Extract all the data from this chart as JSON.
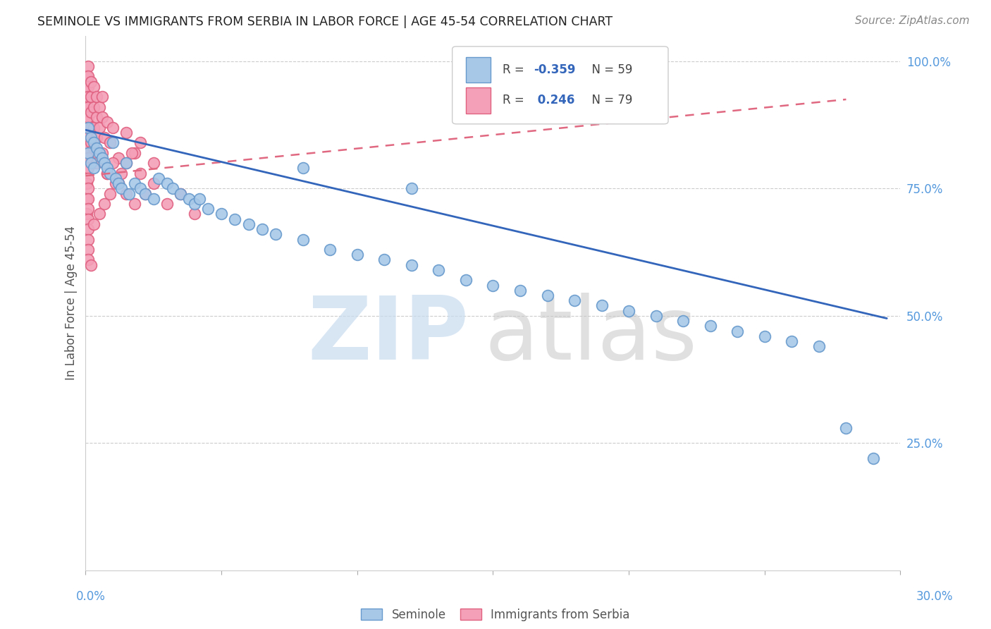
{
  "title": "SEMINOLE VS IMMIGRANTS FROM SERBIA IN LABOR FORCE | AGE 45-54 CORRELATION CHART",
  "source": "Source: ZipAtlas.com",
  "ylabel": "In Labor Force | Age 45-54",
  "legend_blue": {
    "R": -0.359,
    "N": 59,
    "label": "Seminole"
  },
  "legend_pink": {
    "R": 0.246,
    "N": 79,
    "label": "Immigrants from Serbia"
  },
  "blue_scatter_x": [
    0.001,
    0.001,
    0.002,
    0.002,
    0.003,
    0.003,
    0.004,
    0.005,
    0.006,
    0.007,
    0.008,
    0.009,
    0.01,
    0.011,
    0.012,
    0.013,
    0.015,
    0.016,
    0.018,
    0.02,
    0.022,
    0.025,
    0.027,
    0.03,
    0.032,
    0.035,
    0.038,
    0.04,
    0.042,
    0.045,
    0.05,
    0.055,
    0.06,
    0.065,
    0.07,
    0.08,
    0.09,
    0.1,
    0.11,
    0.12,
    0.13,
    0.14,
    0.15,
    0.16,
    0.17,
    0.18,
    0.19,
    0.2,
    0.21,
    0.22,
    0.23,
    0.24,
    0.25,
    0.26,
    0.27,
    0.28,
    0.29,
    0.08,
    0.12
  ],
  "blue_scatter_y": [
    0.87,
    0.82,
    0.85,
    0.8,
    0.84,
    0.79,
    0.83,
    0.82,
    0.81,
    0.8,
    0.79,
    0.78,
    0.84,
    0.77,
    0.76,
    0.75,
    0.8,
    0.74,
    0.76,
    0.75,
    0.74,
    0.73,
    0.77,
    0.76,
    0.75,
    0.74,
    0.73,
    0.72,
    0.73,
    0.71,
    0.7,
    0.69,
    0.68,
    0.67,
    0.66,
    0.65,
    0.63,
    0.62,
    0.61,
    0.6,
    0.59,
    0.57,
    0.56,
    0.55,
    0.54,
    0.53,
    0.52,
    0.51,
    0.5,
    0.49,
    0.48,
    0.47,
    0.46,
    0.45,
    0.44,
    0.28,
    0.22,
    0.79,
    0.75
  ],
  "pink_scatter_x": [
    0.0005,
    0.0005,
    0.0005,
    0.0005,
    0.0005,
    0.0005,
    0.0005,
    0.0005,
    0.0005,
    0.0005,
    0.001,
    0.001,
    0.001,
    0.001,
    0.001,
    0.001,
    0.001,
    0.001,
    0.001,
    0.001,
    0.001,
    0.001,
    0.001,
    0.001,
    0.001,
    0.001,
    0.001,
    0.001,
    0.001,
    0.001,
    0.002,
    0.002,
    0.002,
    0.002,
    0.002,
    0.003,
    0.003,
    0.003,
    0.003,
    0.004,
    0.004,
    0.004,
    0.005,
    0.005,
    0.006,
    0.006,
    0.007,
    0.008,
    0.009,
    0.01,
    0.012,
    0.015,
    0.018,
    0.02,
    0.025,
    0.008,
    0.012,
    0.015,
    0.018,
    0.02,
    0.022,
    0.025,
    0.03,
    0.035,
    0.04,
    0.004,
    0.006,
    0.008,
    0.01,
    0.012,
    0.003,
    0.005,
    0.007,
    0.009,
    0.011,
    0.013,
    0.015,
    0.017,
    0.002
  ],
  "pink_scatter_y": [
    0.97,
    0.94,
    0.91,
    0.88,
    0.85,
    0.82,
    0.79,
    0.76,
    0.73,
    0.7,
    0.99,
    0.97,
    0.95,
    0.93,
    0.91,
    0.89,
    0.87,
    0.85,
    0.83,
    0.81,
    0.79,
    0.77,
    0.75,
    0.73,
    0.71,
    0.69,
    0.67,
    0.65,
    0.63,
    0.61,
    0.96,
    0.93,
    0.9,
    0.87,
    0.84,
    0.95,
    0.91,
    0.87,
    0.83,
    0.93,
    0.89,
    0.85,
    0.91,
    0.87,
    0.93,
    0.89,
    0.85,
    0.88,
    0.84,
    0.87,
    0.81,
    0.86,
    0.82,
    0.84,
    0.8,
    0.78,
    0.76,
    0.74,
    0.72,
    0.78,
    0.74,
    0.76,
    0.72,
    0.74,
    0.7,
    0.8,
    0.82,
    0.78,
    0.8,
    0.76,
    0.68,
    0.7,
    0.72,
    0.74,
    0.76,
    0.78,
    0.8,
    0.82,
    0.6
  ],
  "blue_line_x": [
    0.0,
    0.295
  ],
  "blue_line_y": [
    0.865,
    0.495
  ],
  "pink_line_x": [
    0.0,
    0.28
  ],
  "pink_line_y": [
    0.775,
    0.925
  ],
  "blue_color": "#A8C8E8",
  "pink_color": "#F4A0B8",
  "blue_edge_color": "#6699CC",
  "pink_edge_color": "#E06080",
  "blue_line_color": "#3366BB",
  "pink_line_color": "#E06880",
  "bg_color": "#FFFFFF",
  "grid_color": "#CCCCCC",
  "watermark_zip_color": "#C8DCF0",
  "watermark_atlas_color": "#C8C8C8",
  "xlim": [
    0.0,
    0.3
  ],
  "ylim": [
    0.0,
    1.05
  ],
  "yticks": [
    0.25,
    0.5,
    0.75,
    1.0
  ],
  "ytick_labels": [
    "25.0%",
    "50.0%",
    "75.0%",
    "100.0%"
  ],
  "xtick_left_label": "0.0%",
  "xtick_right_label": "30.0%"
}
